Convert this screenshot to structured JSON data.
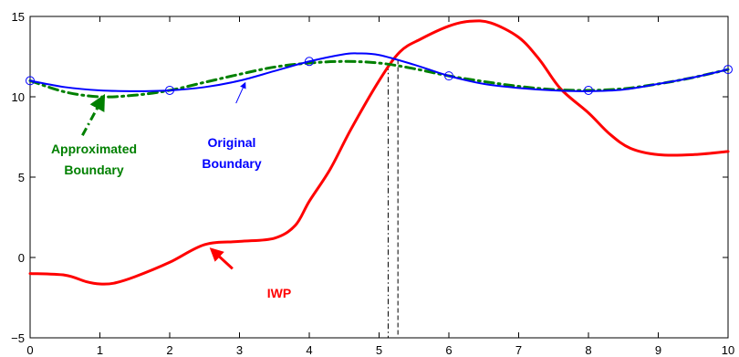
{
  "chart_data": {
    "type": "line",
    "title": "",
    "xlabel": "",
    "ylabel": "",
    "xlim": [
      0,
      10
    ],
    "ylim": [
      -5,
      15
    ],
    "grid": false,
    "x_ticks": [
      "0",
      "1",
      "2",
      "3",
      "4",
      "5",
      "6",
      "7",
      "8",
      "9",
      "10"
    ],
    "y_ticks": [
      "−5",
      "0",
      "5",
      "10",
      "15"
    ],
    "series": [
      {
        "name": "Original Boundary",
        "color": "#0000ff",
        "style": "solid",
        "x": [
          0,
          0.5,
          1,
          1.5,
          2,
          2.5,
          3,
          3.5,
          4,
          4.5,
          4.7,
          5,
          5.5,
          6,
          6.5,
          7,
          7.5,
          8,
          8.5,
          9,
          9.5,
          10
        ],
        "y": [
          11.0,
          10.6,
          10.4,
          10.35,
          10.4,
          10.6,
          11.0,
          11.6,
          12.2,
          12.65,
          12.7,
          12.6,
          12.0,
          11.3,
          10.8,
          10.55,
          10.4,
          10.35,
          10.45,
          10.8,
          11.2,
          11.7
        ]
      },
      {
        "name": "Approximated Boundary",
        "color": "#008000",
        "style": "dash-dot",
        "x": [
          0,
          0.5,
          1,
          1.5,
          2,
          2.5,
          3,
          3.5,
          4,
          4.5,
          5,
          5.5,
          6,
          6.5,
          7,
          7.5,
          8,
          8.5,
          9,
          9.5,
          10
        ],
        "y": [
          11.0,
          10.3,
          10.0,
          10.1,
          10.4,
          10.9,
          11.4,
          11.85,
          12.1,
          12.2,
          12.1,
          11.75,
          11.3,
          10.95,
          10.65,
          10.45,
          10.4,
          10.5,
          10.8,
          11.2,
          11.7
        ]
      },
      {
        "name": "IWP",
        "color": "#ff0000",
        "style": "solid",
        "x": [
          0,
          0.5,
          0.8,
          1,
          1.2,
          1.5,
          2,
          2.5,
          3,
          3.5,
          3.8,
          4,
          4.3,
          4.6,
          5,
          5.3,
          5.6,
          6,
          6.3,
          6.6,
          7,
          7.3,
          7.6,
          8,
          8.3,
          8.6,
          9,
          9.5,
          10
        ],
        "y": [
          -1.0,
          -1.1,
          -1.5,
          -1.65,
          -1.6,
          -1.2,
          -0.3,
          0.8,
          1.0,
          1.2,
          2.0,
          3.5,
          5.5,
          8.0,
          11.0,
          12.8,
          13.6,
          14.4,
          14.7,
          14.6,
          13.7,
          12.3,
          10.5,
          9.0,
          7.7,
          6.8,
          6.4,
          6.4,
          6.6
        ]
      }
    ],
    "markers": {
      "color": "#0000ff",
      "shape": "circle",
      "x": [
        0,
        2,
        4,
        6,
        8,
        10
      ],
      "y": [
        11.0,
        10.4,
        12.2,
        11.3,
        10.4,
        11.7
      ]
    },
    "vertical_lines": [
      {
        "x": 5.13,
        "y_top": 12.0,
        "style": "dash-dot",
        "color": "#000000"
      },
      {
        "x": 5.27,
        "y_top": 12.3,
        "style": "dashed",
        "color": "#000000"
      }
    ],
    "annotations": [
      {
        "lines": [
          "Approximated",
          "Boundary"
        ],
        "color": "#008000",
        "arrow_from": [
          0.75,
          7.6
        ],
        "arrow_to": [
          1.05,
          10.0
        ]
      },
      {
        "lines": [
          "Original",
          "Boundary"
        ],
        "color": "#0000ff",
        "arrow_from": [
          2.95,
          9.6
        ],
        "arrow_to": [
          3.08,
          10.85
        ]
      },
      {
        "lines": [
          "IWP"
        ],
        "color": "#ff0000",
        "arrow_from": [
          2.9,
          -0.7
        ],
        "arrow_to": [
          2.6,
          0.5
        ]
      }
    ]
  }
}
